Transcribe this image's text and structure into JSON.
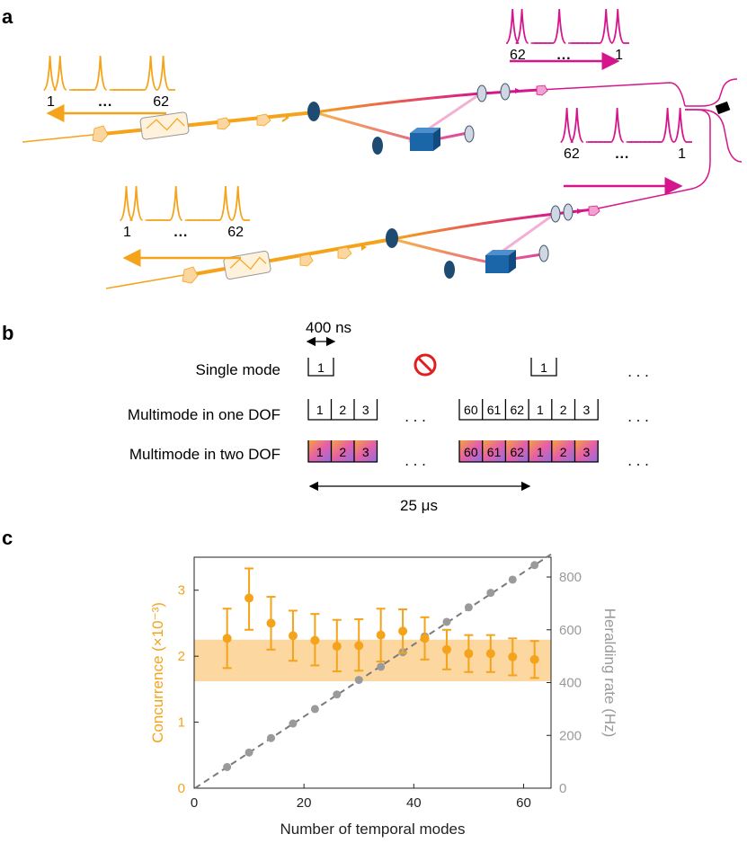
{
  "panels": {
    "a": {
      "label": "a",
      "pulse_trains": [
        {
          "first": "1",
          "last": "62",
          "dots": "···",
          "color": "#f5a31a",
          "arrow": "left"
        },
        {
          "first": "62",
          "last": "1",
          "dots": "···",
          "color": "#d6158c",
          "arrow": "right"
        },
        {
          "first": "62",
          "last": "1",
          "dots": "···",
          "color": "#d6158c",
          "arrow": "right"
        },
        {
          "first": "1",
          "last": "62",
          "dots": "···",
          "color": "#f5a31a",
          "arrow": "left"
        }
      ]
    },
    "b": {
      "label": "b",
      "scale_label": "400 ns",
      "rows": [
        "Single mode",
        "Multimode in one DOF",
        "Multimode in two DOF"
      ],
      "single_cells": [
        "1",
        "1"
      ],
      "one_dof_cells_left": [
        "1",
        "2",
        "3"
      ],
      "one_dof_cells_right": [
        "60",
        "61",
        "62",
        "1",
        "2",
        "3"
      ],
      "two_dof_cells_left": [
        "1",
        "2",
        "3"
      ],
      "two_dof_cells_right": [
        "60",
        "61",
        "62",
        "1",
        "2",
        "3"
      ],
      "ellipsis": ". . .",
      "period_label": "25 μs",
      "forbidden_icon": "no-entry-icon"
    },
    "c": {
      "label": "c"
    }
  },
  "chart_data": {
    "type": "scatter",
    "title": "",
    "xlabel": "Number of temporal modes",
    "ylabel_left": "Concurrence (×10⁻³)",
    "ylabel_right": "Heralding rate (Hz)",
    "xlim": [
      0,
      65
    ],
    "ylim_left": [
      0,
      3.5
    ],
    "ylim_right": [
      0,
      875
    ],
    "xticks": [
      "0",
      "20",
      "40",
      "60"
    ],
    "yticks_left": [
      "0",
      "1",
      "2",
      "3"
    ],
    "yticks_right": [
      "0",
      "200",
      "400",
      "600",
      "800"
    ],
    "colors": {
      "concurrence": "#f5a31a",
      "heralding": "#9a9a9a",
      "band": "#fbd08f"
    },
    "band": {
      "low": 1.62,
      "high": 2.25
    },
    "series": [
      {
        "name": "Concurrence",
        "axis": "left",
        "x": [
          6,
          10,
          14,
          18,
          22,
          26,
          30,
          34,
          38,
          42,
          46,
          50,
          54,
          58,
          62
        ],
        "y": [
          2.27,
          2.88,
          2.5,
          2.31,
          2.24,
          2.15,
          2.16,
          2.32,
          2.38,
          2.27,
          2.1,
          2.04,
          2.04,
          1.99,
          1.95
        ],
        "err_low": [
          0.45,
          0.48,
          0.4,
          0.38,
          0.38,
          0.38,
          0.38,
          0.4,
          0.33,
          0.32,
          0.3,
          0.28,
          0.28,
          0.28,
          0.28
        ],
        "err_high": [
          0.45,
          0.45,
          0.4,
          0.38,
          0.4,
          0.4,
          0.4,
          0.4,
          0.33,
          0.32,
          0.3,
          0.28,
          0.28,
          0.28,
          0.28
        ]
      },
      {
        "name": "Heralding rate",
        "axis": "right",
        "x": [
          6,
          10,
          14,
          18,
          22,
          26,
          30,
          34,
          38,
          42,
          46,
          50,
          54,
          58,
          62
        ],
        "y": [
          80,
          135,
          190,
          245,
          300,
          355,
          410,
          460,
          515,
          575,
          630,
          685,
          740,
          790,
          845
        ],
        "fit": "dashed-line"
      }
    ]
  }
}
